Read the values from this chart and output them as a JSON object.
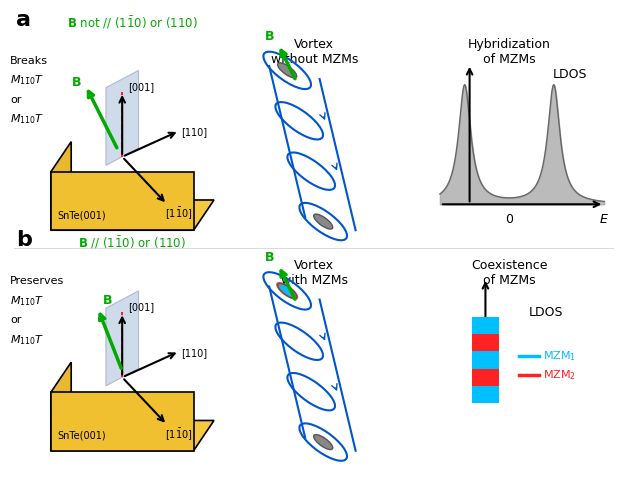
{
  "panel_a_title": "$\\mathbf{B}$ not // $(1\\bar{1}0)$ or $(110)$",
  "panel_b_title": "$\\mathbf{B}$ // $(1\\bar{1}0)$ or $(110)$",
  "panel_a_label": "a",
  "panel_b_label": "b",
  "panel_a_left_text1": "Breaks",
  "panel_a_left_text2": "$M_{1\\bar{1}0}T$",
  "panel_a_left_text3": "or",
  "panel_a_left_text4": "$M_{110}T$",
  "panel_b_left_text1": "Preserves",
  "panel_b_left_text2": "$M_{1\\bar{1}0}T$",
  "panel_b_left_text3": "or",
  "panel_b_left_text4": "$M_{110}T$",
  "vortex_a_title": "Vortex\nwithout MZMs",
  "vortex_b_title": "Vortex\nwith MZMs",
  "dos_a_title": "Hybridization\nof MZMs",
  "dos_b_title": "Coexistence\nof MZMs",
  "green_color": "#00aa00",
  "blue_color": "#0055cc",
  "cyan_color": "#00bfff",
  "red_color": "#ff2222",
  "gray_color": "#aaaaaa",
  "axis_label_color": "#000000",
  "label_fontsize": 14,
  "title_fontsize": 11,
  "bg_color": "#ffffff"
}
